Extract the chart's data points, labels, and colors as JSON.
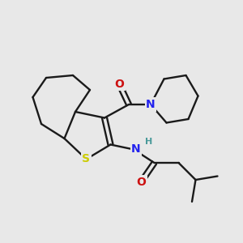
{
  "bg_color": "#e8e8e8",
  "bond_color": "#1a1a1a",
  "atom_colors": {
    "N": "#2222ee",
    "O": "#cc1111",
    "S": "#cccc00",
    "H": "#4a9a9a",
    "C": "#1a1a1a"
  }
}
